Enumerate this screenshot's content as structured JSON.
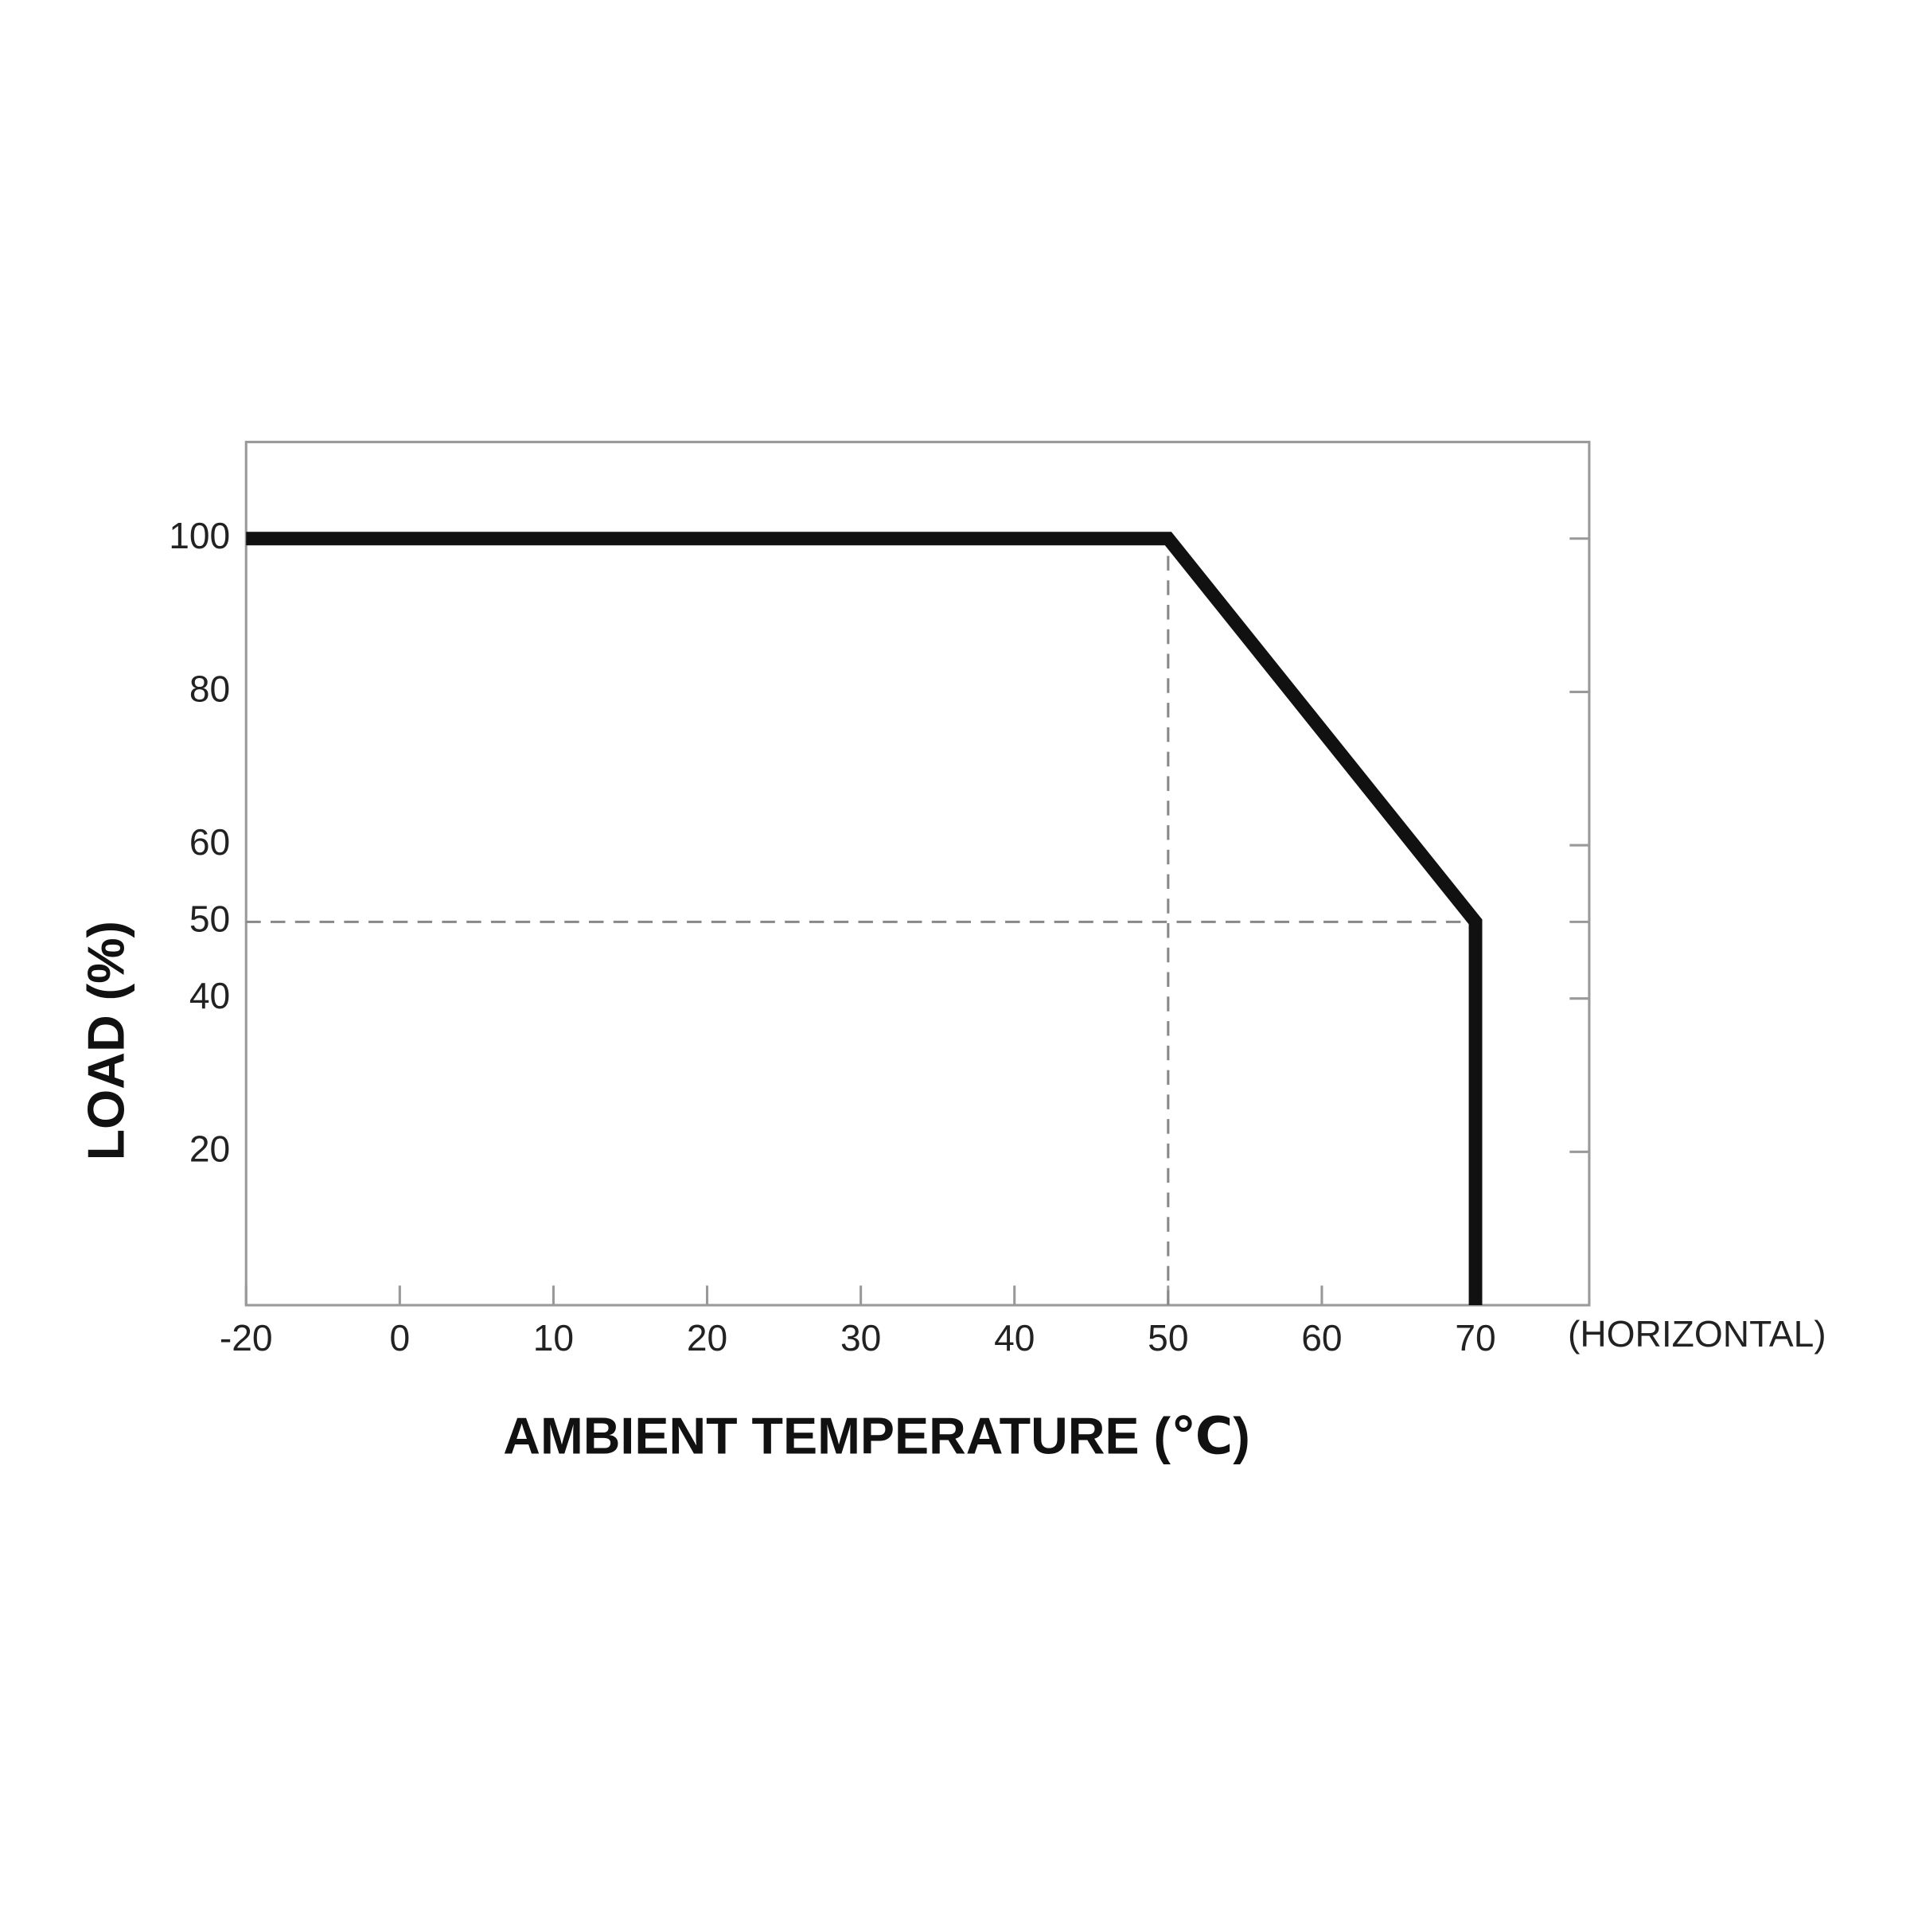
{
  "chart_data": {
    "type": "line",
    "x_label": "AMBIENT TEMPERATURE (℃)",
    "y_label": "LOAD (%)",
    "annotation": "(HORIZONTAL)",
    "x": [
      -20,
      50,
      70,
      70
    ],
    "series": [
      {
        "color": "#111111",
        "values": [
          100,
          100,
          50,
          0
        ]
      }
    ],
    "xlim": [
      -20,
      77.4
    ],
    "xticks": [
      -20,
      0,
      10,
      20,
      30,
      40,
      50,
      60,
      70
    ],
    "ylim": [
      0,
      112.6
    ],
    "yticks": [
      100,
      80,
      60,
      50,
      40,
      20
    ],
    "reference_lines": {
      "x": [
        50
      ],
      "y": [
        50
      ]
    }
  }
}
